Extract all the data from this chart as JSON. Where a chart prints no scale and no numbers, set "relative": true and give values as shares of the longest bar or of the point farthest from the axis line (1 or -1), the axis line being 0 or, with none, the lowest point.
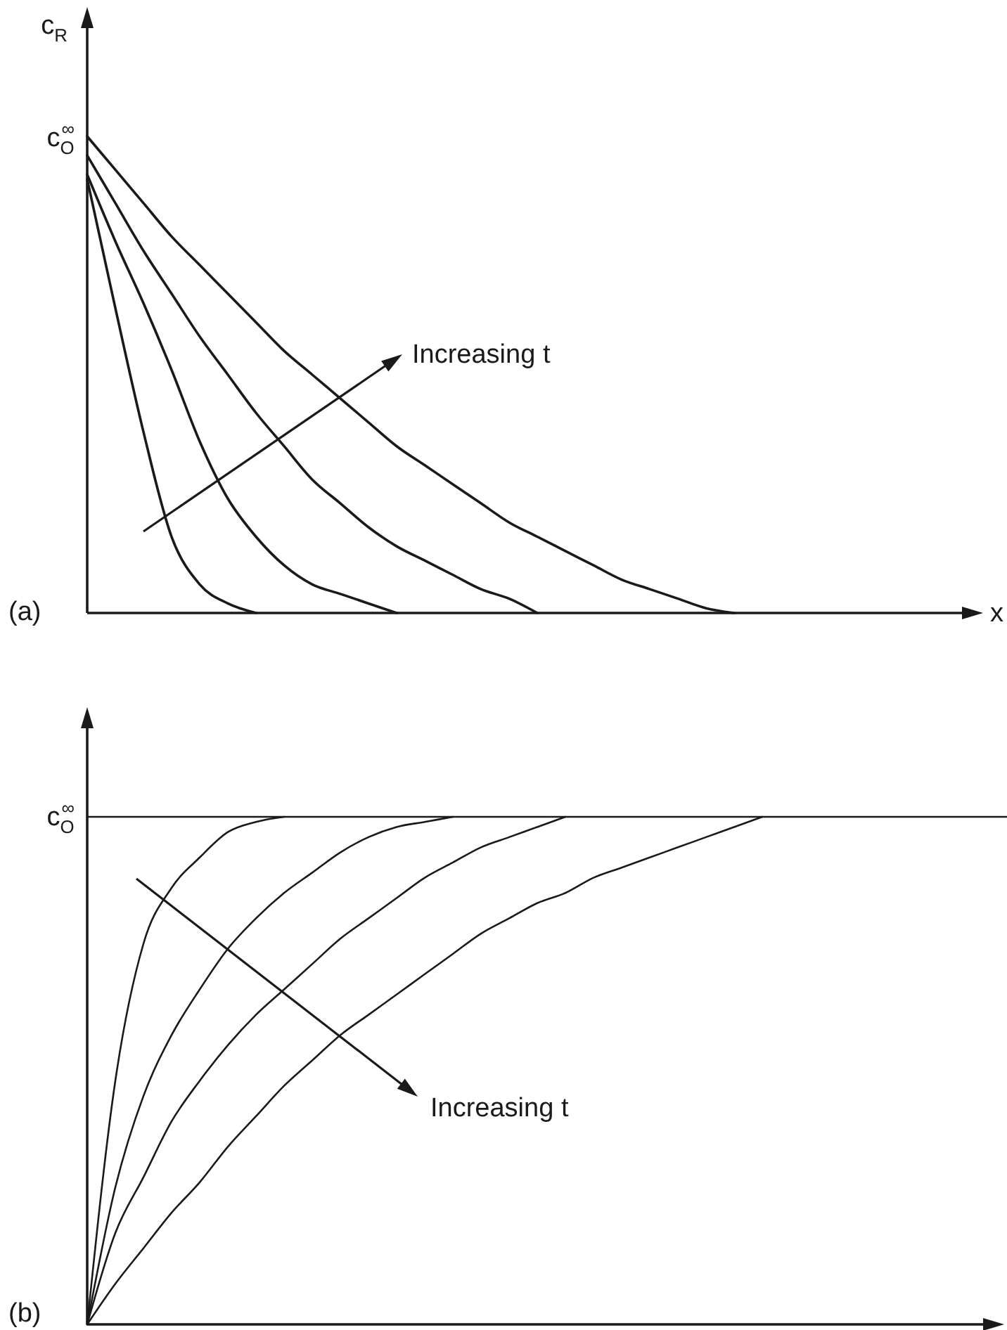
{
  "chart_data": [
    {
      "type": "line",
      "title": "(a)",
      "xlabel": "x",
      "ylabel": "c$_{R}$",
      "relative": true,
      "categories": [
        null,
        null,
        null,
        null,
        null,
        null,
        null,
        null,
        null,
        null,
        null,
        null,
        null,
        null,
        null,
        null,
        null,
        null,
        null,
        null,
        null,
        null,
        null,
        null,
        null,
        null,
        null,
        null,
        null,
        null,
        null,
        null,
        null
      ],
      "annotations": [
        "c$_{O}$$^{∞}$",
        "Increasing t"
      ],
      "series": [
        {
          "color": "#1a1a1a",
          "values": [
            0.91,
            0.64,
            0.38,
            0.16,
            0.06,
            0.02,
            0,
            null,
            null,
            null,
            null,
            null,
            null,
            null,
            null,
            null,
            null,
            null,
            null,
            null,
            null,
            null,
            null,
            null,
            null,
            null,
            null,
            null,
            null,
            null,
            null,
            null,
            null
          ]
        },
        {
          "color": "#1a1a1a",
          "values": [
            0.92,
            0.78,
            0.65,
            0.51,
            0.36,
            0.24,
            0.16,
            0.1,
            0.06,
            0.04,
            0.02,
            0,
            null,
            null,
            null,
            null,
            null,
            null,
            null,
            null,
            null,
            null,
            null,
            null,
            null,
            null,
            null,
            null,
            null,
            null,
            null,
            null,
            null
          ]
        },
        {
          "color": "#1a1a1a",
          "values": [
            0.96,
            0.86,
            0.76,
            0.67,
            0.58,
            0.5,
            0.42,
            0.35,
            0.28,
            0.23,
            0.18,
            0.14,
            0.11,
            0.08,
            0.05,
            0.03,
            0,
            null,
            null,
            null,
            null,
            null,
            null,
            null,
            null,
            null,
            null,
            null,
            null,
            null,
            null,
            null,
            null
          ]
        },
        {
          "color": "#1a1a1a",
          "values": [
            1,
            0.93,
            0.86,
            0.79,
            0.73,
            0.67,
            0.61,
            0.55,
            0.5,
            0.45,
            0.4,
            0.35,
            0.31,
            0.27,
            0.23,
            0.19,
            0.16,
            0.13,
            0.1,
            0.07,
            0.05,
            0.03,
            0.01,
            0,
            null,
            null,
            null,
            null,
            null,
            null,
            null,
            null,
            null
          ]
        }
      ]
    },
    {
      "type": "line",
      "title": "(b)",
      "relative": true,
      "categories": [
        null,
        null,
        null,
        null,
        null,
        null,
        null,
        null,
        null,
        null,
        null,
        null,
        null,
        null,
        null,
        null,
        null,
        null,
        null,
        null,
        null,
        null,
        null,
        null,
        null,
        null,
        null,
        null,
        null,
        null,
        null,
        null,
        null
      ],
      "ref_lines": [
        {
          "axis": "y",
          "value": 1,
          "label": "c$_{O}$$^{∞}$",
          "color": "#1a1a1a"
        }
      ],
      "annotations": [
        "Increasing t"
      ],
      "series": [
        {
          "color": "#1a1a1a",
          "values": [
            0,
            0.48,
            0.75,
            0.86,
            0.92,
            0.97,
            0.99,
            1,
            null,
            null,
            null,
            null,
            null,
            null,
            null,
            null,
            null,
            null,
            null,
            null,
            null,
            null,
            null,
            null,
            null,
            null,
            null,
            null,
            null,
            null,
            null,
            null,
            null
          ]
        },
        {
          "color": "#1a1a1a",
          "values": [
            0,
            0.27,
            0.45,
            0.57,
            0.66,
            0.74,
            0.8,
            0.85,
            0.89,
            0.93,
            0.96,
            0.98,
            0.99,
            1,
            null,
            null,
            null,
            null,
            null,
            null,
            null,
            null,
            null,
            null,
            null,
            null,
            null,
            null,
            null,
            null,
            null,
            null,
            null
          ]
        },
        {
          "color": "#1a1a1a",
          "values": [
            0,
            0.18,
            0.29,
            0.4,
            0.48,
            0.55,
            0.61,
            0.66,
            0.71,
            0.76,
            0.8,
            0.84,
            0.88,
            0.91,
            0.94,
            0.96,
            0.98,
            1,
            null,
            null,
            null,
            null,
            null,
            null,
            null,
            null,
            null,
            null,
            null,
            null,
            null,
            null,
            null
          ]
        },
        {
          "color": "#1a1a1a",
          "values": [
            0,
            0.08,
            0.15,
            0.22,
            0.28,
            0.35,
            0.41,
            0.47,
            0.52,
            0.57,
            0.61,
            0.65,
            0.69,
            0.73,
            0.77,
            0.8,
            0.83,
            0.85,
            0.88,
            0.9,
            0.92,
            0.94,
            0.96,
            0.98,
            1,
            null,
            null,
            null,
            null,
            null,
            null,
            null,
            null
          ]
        }
      ]
    }
  ]
}
